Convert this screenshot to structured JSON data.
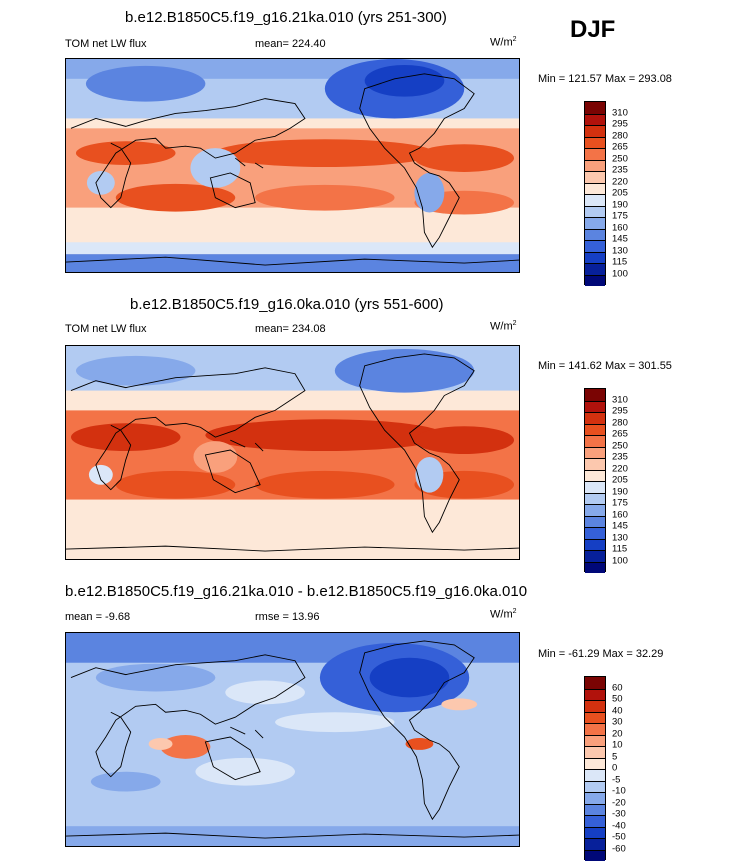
{
  "season": "DJF",
  "panels": [
    {
      "title": "b.e12.B1850C5.f19_g16.21ka.010 (yrs 251-300)",
      "left_label": "TOM net LW flux",
      "center_label": "mean= 224.40",
      "units": "W/m",
      "units_exp": "2",
      "minmax": "Min = 121.57 Max = 293.08",
      "colorbar": [
        "310",
        "295",
        "280",
        "265",
        "250",
        "235",
        "220",
        "205",
        "190",
        "175",
        "160",
        "145",
        "130",
        "115",
        "100"
      ]
    },
    {
      "title": "b.e12.B1850C5.f19_g16.0ka.010 (yrs 551-600)",
      "left_label": "TOM net LW flux",
      "center_label": "mean= 234.08",
      "units": "W/m",
      "units_exp": "2",
      "minmax": "Min = 141.62 Max = 301.55",
      "colorbar": [
        "310",
        "295",
        "280",
        "265",
        "250",
        "235",
        "220",
        "205",
        "190",
        "175",
        "160",
        "145",
        "130",
        "115",
        "100"
      ]
    },
    {
      "title": "b.e12.B1850C5.f19_g16.21ka.010 - b.e12.B1850C5.f19_g16.0ka.010",
      "left_label": "mean =  -9.68",
      "center_label": "rmse =  13.96",
      "units": "W/m",
      "units_exp": "2",
      "minmax": "Min = -61.29 Max =  32.29",
      "colorbar": [
        "60",
        "50",
        "40",
        "30",
        "20",
        "10",
        "5",
        "0",
        "-5",
        "-10",
        "-20",
        "-30",
        "-40",
        "-50",
        "-60"
      ]
    }
  ],
  "colors": {
    "seq": [
      "#7a0403",
      "#b1120c",
      "#d3310f",
      "#e8501f",
      "#f37347",
      "#f9a07c",
      "#fcc8ae",
      "#fde8d8",
      "#dbe7f8",
      "#b2cbf2",
      "#86a9ea",
      "#5b84e0",
      "#3560d8",
      "#153fc4",
      "#07209a",
      "#000878"
    ],
    "ocean_warm": "#ee5a32",
    "ocean_mid": "#f8a07b",
    "ocean_light": "#fde6d4",
    "cool_light": "#d3e3f8",
    "cool_mid": "#8fb0ec",
    "cool_deep": "#3463d6",
    "cool_dark": "#0f30b8"
  }
}
